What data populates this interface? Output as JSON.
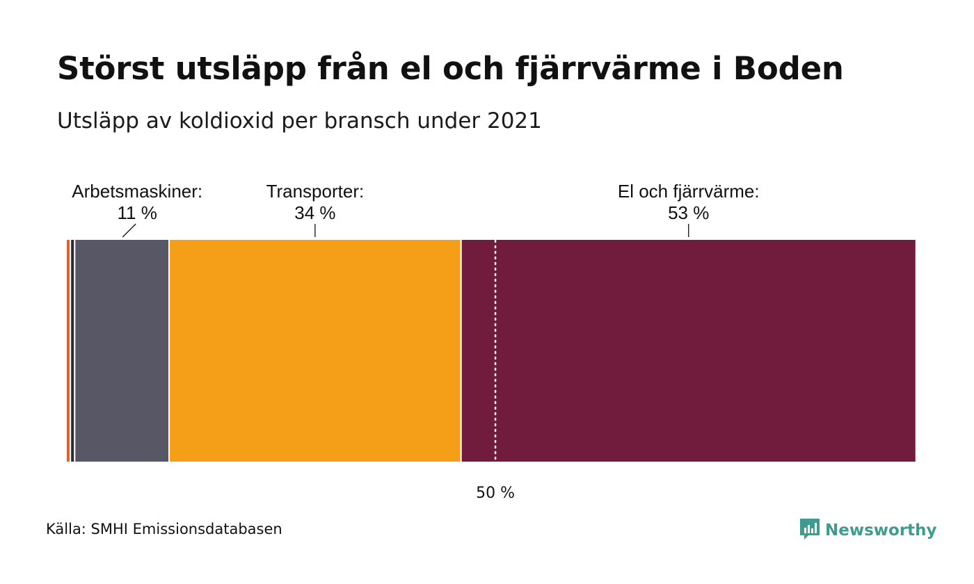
{
  "title": "Störst utsläpp från el och fjärrvärme i Boden",
  "subtitle": "Utsläpp av koldioxid per bransch under 2021",
  "source": "Källa: SMHI Emissionsdatabasen",
  "brand": {
    "name": "Newsworthy",
    "icon": "newsworthy-logo-icon",
    "color": "#3f9b8f"
  },
  "chart_data": {
    "type": "bar",
    "orientation": "horizontal-stacked-100",
    "segments": [
      {
        "category": "",
        "value": 0.5,
        "color": "#e0622a",
        "label": "",
        "value_label": ""
      },
      {
        "category": "",
        "value": 0.5,
        "color": "#2b2b33",
        "label": "",
        "value_label": ""
      },
      {
        "category": "Arbetsmaskiner",
        "value": 11,
        "color": "#585766",
        "label": "Arbetsmaskiner:",
        "value_label": "11 %"
      },
      {
        "category": "Transporter",
        "value": 34,
        "color": "#f59e17",
        "label": "Transporter:",
        "value_label": "34 %"
      },
      {
        "category": "El och fjärrvärme",
        "value": 53,
        "color": "#721c3d",
        "label": "El och fjärrvärme:",
        "value_label": "53 %"
      },
      {
        "category": "",
        "value": 0.1,
        "color": "#e8c9d4",
        "label": "",
        "value_label": ""
      }
    ],
    "reference_line": {
      "value": 50,
      "label": "50 %",
      "style": "dotted"
    },
    "xlim": [
      0,
      100
    ],
    "unit": "%",
    "grid": false,
    "legend": "none"
  }
}
